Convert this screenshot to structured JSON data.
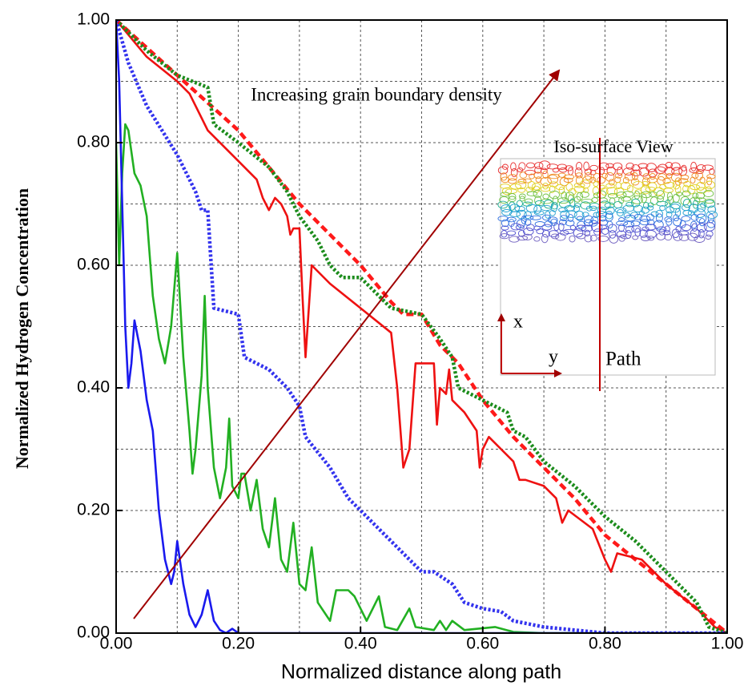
{
  "chart_data": {
    "type": "line",
    "xlabel": "Normalized distance along path",
    "ylabel": "Normalized Hydrogen Concentration",
    "annotations": {
      "arrow_text": "Increasing grain boundary density",
      "inset_title": "Iso-surface View",
      "inset_x": "x",
      "inset_y": "y",
      "inset_path": "Path"
    },
    "xlim": [
      0,
      1
    ],
    "ylim": [
      0,
      1
    ],
    "xticks": [
      {
        "value": 0,
        "label": "0.00"
      },
      {
        "value": 0.2,
        "label": "0.20"
      },
      {
        "value": 0.4,
        "label": "0.40"
      },
      {
        "value": 0.6,
        "label": "0.60"
      },
      {
        "value": 0.8,
        "label": "0.80"
      },
      {
        "value": 1,
        "label": "1.00"
      }
    ],
    "yticks": [
      {
        "value": 0,
        "label": "0.00"
      },
      {
        "value": 0.2,
        "label": "0.20"
      },
      {
        "value": 0.4,
        "label": "0.40"
      },
      {
        "value": 0.6,
        "label": "0.60"
      },
      {
        "value": 0.8,
        "label": "0.80"
      },
      {
        "value": 1,
        "label": "1.00"
      }
    ],
    "minor_grid": [
      0.1,
      0.3,
      0.5,
      0.7,
      0.9
    ],
    "grid": true,
    "series": [
      {
        "color": "#ff1a1a",
        "style": "dashed",
        "x": [
          0,
          0.1,
          0.2,
          0.3,
          0.4,
          0.45,
          0.47,
          0.5,
          0.53,
          0.56,
          0.6,
          0.65,
          0.7,
          0.75,
          0.8,
          0.85,
          0.9,
          0.95,
          1
        ],
        "values": [
          1,
          0.91,
          0.82,
          0.7,
          0.6,
          0.54,
          0.52,
          0.52,
          0.47,
          0.44,
          0.38,
          0.32,
          0.27,
          0.22,
          0.16,
          0.12,
          0.08,
          0.04,
          0
        ]
      },
      {
        "color": "#ee1111",
        "style": "solid",
        "x": [
          0,
          0.05,
          0.1,
          0.12,
          0.15,
          0.2,
          0.23,
          0.24,
          0.25,
          0.26,
          0.27,
          0.28,
          0.285,
          0.29,
          0.3,
          0.305,
          0.31,
          0.32,
          0.35,
          0.4,
          0.45,
          0.46,
          0.47,
          0.48,
          0.49,
          0.52,
          0.525,
          0.53,
          0.54,
          0.545,
          0.55,
          0.57,
          0.59,
          0.595,
          0.6,
          0.61,
          0.65,
          0.66,
          0.67,
          0.7,
          0.72,
          0.73,
          0.74,
          0.78,
          0.8,
          0.81,
          0.82,
          0.86,
          0.9,
          0.95,
          0.98,
          1
        ],
        "values": [
          1,
          0.94,
          0.9,
          0.88,
          0.82,
          0.77,
          0.74,
          0.71,
          0.69,
          0.71,
          0.7,
          0.68,
          0.65,
          0.66,
          0.66,
          0.55,
          0.45,
          0.6,
          0.57,
          0.53,
          0.49,
          0.4,
          0.27,
          0.3,
          0.44,
          0.44,
          0.34,
          0.4,
          0.39,
          0.43,
          0.38,
          0.36,
          0.33,
          0.27,
          0.3,
          0.32,
          0.28,
          0.25,
          0.25,
          0.24,
          0.22,
          0.18,
          0.2,
          0.17,
          0.12,
          0.1,
          0.13,
          0.12,
          0.08,
          0.04,
          0.01,
          0
        ]
      },
      {
        "color": "#1c8c1c",
        "style": "dotted",
        "x": [
          0,
          0.05,
          0.1,
          0.15,
          0.16,
          0.2,
          0.25,
          0.28,
          0.3,
          0.33,
          0.35,
          0.37,
          0.4,
          0.43,
          0.45,
          0.5,
          0.53,
          0.55,
          0.56,
          0.6,
          0.64,
          0.65,
          0.67,
          0.7,
          0.75,
          0.8,
          0.85,
          0.9,
          0.95,
          0.97,
          1
        ],
        "values": [
          1,
          0.95,
          0.91,
          0.89,
          0.83,
          0.8,
          0.76,
          0.72,
          0.68,
          0.64,
          0.6,
          0.58,
          0.58,
          0.55,
          0.53,
          0.52,
          0.48,
          0.45,
          0.4,
          0.38,
          0.36,
          0.33,
          0.32,
          0.28,
          0.24,
          0.19,
          0.15,
          0.1,
          0.05,
          0.01,
          0
        ]
      },
      {
        "color": "#22b022",
        "style": "solid",
        "x": [
          0,
          0.005,
          0.01,
          0.015,
          0.02,
          0.03,
          0.04,
          0.05,
          0.06,
          0.07,
          0.08,
          0.09,
          0.1,
          0.11,
          0.12,
          0.125,
          0.13,
          0.14,
          0.145,
          0.15,
          0.16,
          0.17,
          0.18,
          0.185,
          0.19,
          0.2,
          0.205,
          0.21,
          0.22,
          0.23,
          0.24,
          0.25,
          0.26,
          0.27,
          0.28,
          0.29,
          0.3,
          0.31,
          0.32,
          0.33,
          0.35,
          0.36,
          0.38,
          0.39,
          0.41,
          0.43,
          0.44,
          0.46,
          0.48,
          0.49,
          0.52,
          0.53,
          0.54,
          0.55,
          0.57,
          0.62,
          0.65,
          0.7,
          1
        ],
        "values": [
          0.8,
          0.6,
          0.75,
          0.83,
          0.82,
          0.75,
          0.73,
          0.68,
          0.55,
          0.48,
          0.44,
          0.5,
          0.62,
          0.45,
          0.33,
          0.26,
          0.3,
          0.42,
          0.55,
          0.4,
          0.27,
          0.22,
          0.27,
          0.35,
          0.24,
          0.22,
          0.26,
          0.26,
          0.2,
          0.25,
          0.17,
          0.14,
          0.22,
          0.12,
          0.1,
          0.18,
          0.08,
          0.07,
          0.14,
          0.05,
          0.02,
          0.07,
          0.07,
          0.06,
          0.02,
          0.06,
          0.01,
          0.005,
          0.04,
          0.01,
          0.005,
          0.02,
          0.005,
          0.02,
          0.005,
          0.01,
          0.002,
          0,
          0
        ]
      },
      {
        "color": "#3333ee",
        "style": "dotted",
        "x": [
          0,
          0.02,
          0.05,
          0.1,
          0.13,
          0.14,
          0.15,
          0.16,
          0.2,
          0.21,
          0.25,
          0.28,
          0.3,
          0.31,
          0.35,
          0.38,
          0.4,
          0.43,
          0.45,
          0.48,
          0.5,
          0.52,
          0.55,
          0.57,
          0.6,
          0.63,
          0.65,
          0.7,
          0.75,
          0.8,
          1
        ],
        "values": [
          1,
          0.93,
          0.86,
          0.78,
          0.72,
          0.69,
          0.69,
          0.53,
          0.52,
          0.45,
          0.43,
          0.4,
          0.37,
          0.32,
          0.27,
          0.22,
          0.2,
          0.17,
          0.15,
          0.12,
          0.1,
          0.1,
          0.08,
          0.05,
          0.04,
          0.035,
          0.02,
          0.01,
          0.005,
          0,
          0
        ]
      },
      {
        "color": "#1a1aee",
        "style": "solid",
        "x": [
          0,
          0.005,
          0.01,
          0.015,
          0.02,
          0.025,
          0.03,
          0.04,
          0.05,
          0.06,
          0.07,
          0.08,
          0.09,
          0.095,
          0.1,
          0.11,
          0.12,
          0.13,
          0.14,
          0.15,
          0.16,
          0.17,
          0.18,
          0.19,
          0.2,
          1
        ],
        "values": [
          1,
          0.9,
          0.7,
          0.5,
          0.4,
          0.44,
          0.51,
          0.46,
          0.38,
          0.33,
          0.2,
          0.12,
          0.08,
          0.1,
          0.15,
          0.08,
          0.03,
          0.01,
          0.03,
          0.07,
          0.02,
          0.005,
          0,
          0.007,
          0,
          0
        ]
      }
    ]
  }
}
